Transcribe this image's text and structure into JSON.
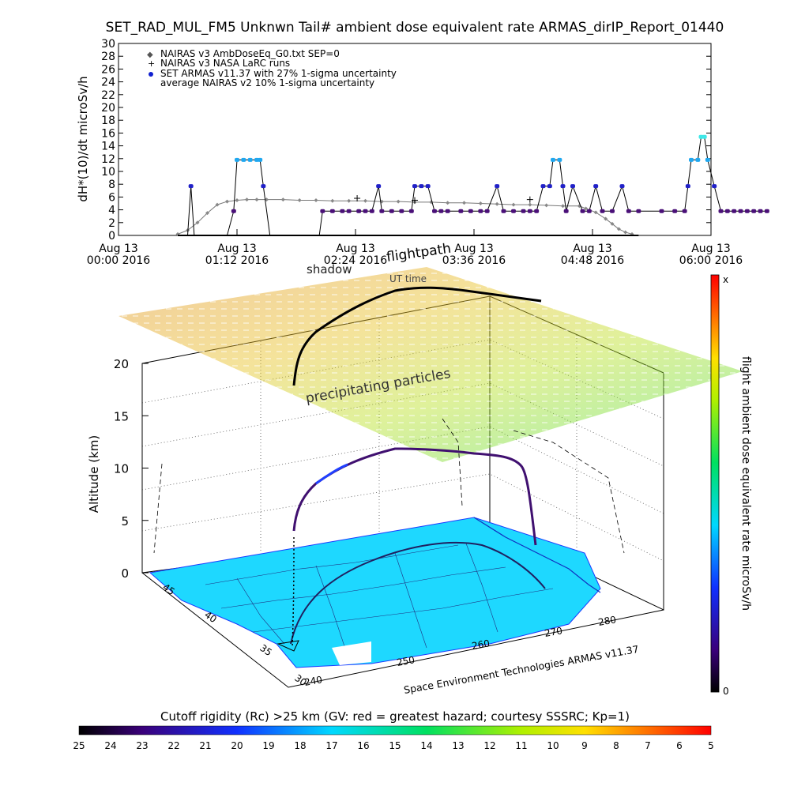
{
  "title": "SET_RAD_MUL_FM5 Unknwn Tail#  ambient dose equivalent rate ARMAS_dirIP_Report_01440",
  "chart_data": [
    {
      "type": "scatter",
      "ylabel": "dH*(10)/dt microSv/h",
      "ylim": [
        0,
        30
      ],
      "yticks": [
        0,
        2,
        4,
        6,
        8,
        10,
        12,
        14,
        16,
        18,
        20,
        22,
        24,
        26,
        28,
        30
      ],
      "xlim_minutes": [
        0,
        360
      ],
      "xticks": [
        {
          "l1": "Aug 13",
          "l2": "00:00 2016"
        },
        {
          "l1": "Aug 13",
          "l2": "01:12 2016"
        },
        {
          "l1": "Aug 13",
          "l2": "02:24 2016"
        },
        {
          "l1": "Aug 13",
          "l2": "03:36 2016"
        },
        {
          "l1": "Aug 13",
          "l2": "04:48 2016"
        },
        {
          "l1": "Aug 13",
          "l2": "06:00 2016"
        }
      ],
      "legend": [
        "NAIRAS v3 AmbDoseEq_G0.txt SEP=0",
        "NAIRAS v3 NASA LaRC runs",
        "SET ARMAS v11.37 with 27% 1-sigma uncertainty",
        "average NAIRAS v2 10% 1-sigma uncertainty"
      ],
      "legend_placement": "top-left",
      "series": [
        {
          "name": "NAIRAS v3 AmbDoseEq_G0.txt SEP=0",
          "x": [
            36,
            42,
            48,
            54,
            60,
            66,
            72,
            78,
            84,
            90,
            100,
            110,
            120,
            130,
            140,
            150,
            160,
            170,
            180,
            190,
            200,
            210,
            220,
            230,
            240,
            250,
            260,
            270,
            280,
            284,
            290,
            296,
            300,
            304,
            308,
            312
          ],
          "y": [
            0.2,
            0.8,
            2.0,
            3.5,
            4.8,
            5.3,
            5.5,
            5.6,
            5.6,
            5.6,
            5.6,
            5.5,
            5.5,
            5.4,
            5.4,
            5.4,
            5.3,
            5.3,
            5.2,
            5.2,
            5.1,
            5.1,
            5.0,
            4.9,
            4.8,
            4.8,
            4.7,
            4.6,
            4.6,
            4.2,
            3.6,
            2.6,
            1.8,
            1.0,
            0.5,
            0.2
          ]
        },
        {
          "name": "NAIRAS v3 NASA LaRC runs",
          "x": [
            145,
            180,
            250
          ],
          "y": [
            5.8,
            5.5,
            5.6
          ]
        },
        {
          "name": "SET ARMAS v11.37 with 27% 1-sigma uncertainty",
          "points": [
            [
              36,
              0
            ],
            [
              42,
              0
            ],
            [
              44,
              7.7
            ],
            [
              46,
              0
            ],
            [
              60,
              0
            ],
            [
              66,
              0
            ],
            [
              70,
              3.8
            ],
            [
              72,
              11.8
            ],
            [
              76,
              11.8
            ],
            [
              80,
              11.8
            ],
            [
              84,
              11.8
            ],
            [
              86,
              11.8
            ],
            [
              88,
              7.7
            ],
            [
              92,
              0
            ],
            [
              100,
              0
            ],
            [
              110,
              0
            ],
            [
              115,
              0
            ],
            [
              122,
              0
            ],
            [
              124,
              3.8
            ],
            [
              130,
              3.8
            ],
            [
              136,
              3.8
            ],
            [
              140,
              3.8
            ],
            [
              146,
              3.8
            ],
            [
              150,
              3.8
            ],
            [
              154,
              3.8
            ],
            [
              158,
              7.7
            ],
            [
              160,
              3.8
            ],
            [
              166,
              3.8
            ],
            [
              172,
              3.8
            ],
            [
              178,
              3.8
            ],
            [
              180,
              7.7
            ],
            [
              184,
              7.7
            ],
            [
              188,
              7.7
            ],
            [
              192,
              3.8
            ],
            [
              196,
              3.8
            ],
            [
              200,
              3.8
            ],
            [
              208,
              3.8
            ],
            [
              214,
              3.8
            ],
            [
              220,
              3.8
            ],
            [
              224,
              3.8
            ],
            [
              230,
              7.7
            ],
            [
              234,
              3.8
            ],
            [
              240,
              3.8
            ],
            [
              246,
              3.8
            ],
            [
              250,
              3.8
            ],
            [
              254,
              3.8
            ],
            [
              258,
              7.7
            ],
            [
              262,
              7.7
            ],
            [
              264,
              11.8
            ],
            [
              268,
              11.8
            ],
            [
              270,
              7.7
            ],
            [
              272,
              3.8
            ],
            [
              276,
              7.7
            ],
            [
              282,
              3.8
            ],
            [
              286,
              3.8
            ],
            [
              290,
              7.7
            ],
            [
              294,
              3.8
            ],
            [
              300,
              3.8
            ],
            [
              306,
              7.7
            ],
            [
              310,
              3.8
            ],
            [
              316,
              3.8
            ],
            [
              330,
              3.8
            ],
            [
              338,
              3.8
            ],
            [
              344,
              3.8
            ],
            [
              346,
              7.7
            ],
            [
              348,
              11.8
            ],
            [
              352,
              11.8
            ],
            [
              354,
              15.4
            ],
            [
              356,
              15.4
            ],
            [
              358,
              11.8
            ],
            [
              362,
              7.7
            ],
            [
              366,
              3.8
            ],
            [
              370,
              3.8
            ],
            [
              374,
              3.8
            ],
            [
              378,
              3.8
            ],
            [
              382,
              3.8
            ],
            [
              386,
              3.8
            ],
            [
              390,
              3.8
            ],
            [
              394,
              3.8
            ],
            [
              300,
              0
            ]
          ]
        },
        {
          "name": "average NAIRAS v2 10% 1-sigma uncertainty",
          "points": []
        }
      ]
    },
    {
      "type": "3d-scatter",
      "annotations": [
        "flightpath",
        "shadow",
        "UT time",
        "precipitating particles"
      ],
      "zlabel": "Altitude (km)",
      "zticks": [
        0,
        5,
        10,
        15,
        20
      ],
      "lat_ticks": [
        30,
        35,
        40,
        45
      ],
      "lon_ticks": [
        240,
        250,
        260,
        270,
        280
      ],
      "credit": "Space Environment Technologies ARMAS v11.37",
      "colorbar": {
        "label": "flight ambient dose equivalent rate microSv/h",
        "min_label": "0",
        "max_label": "x"
      }
    },
    {
      "type": "colorbar",
      "label": "Cutoff rigidity (Rc) >25 km (GV: red = greatest hazard; courtesy SSSRC; Kp=1)",
      "ticks": [
        25,
        24,
        23,
        22,
        21,
        20,
        19,
        18,
        17,
        16,
        15,
        14,
        13,
        12,
        11,
        10,
        9,
        8,
        7,
        6,
        5
      ]
    }
  ],
  "colors": {
    "hazard_low": "#000000",
    "hazard_high": "#ff0000",
    "ground": "#19d8ff",
    "grid": "#888888"
  }
}
